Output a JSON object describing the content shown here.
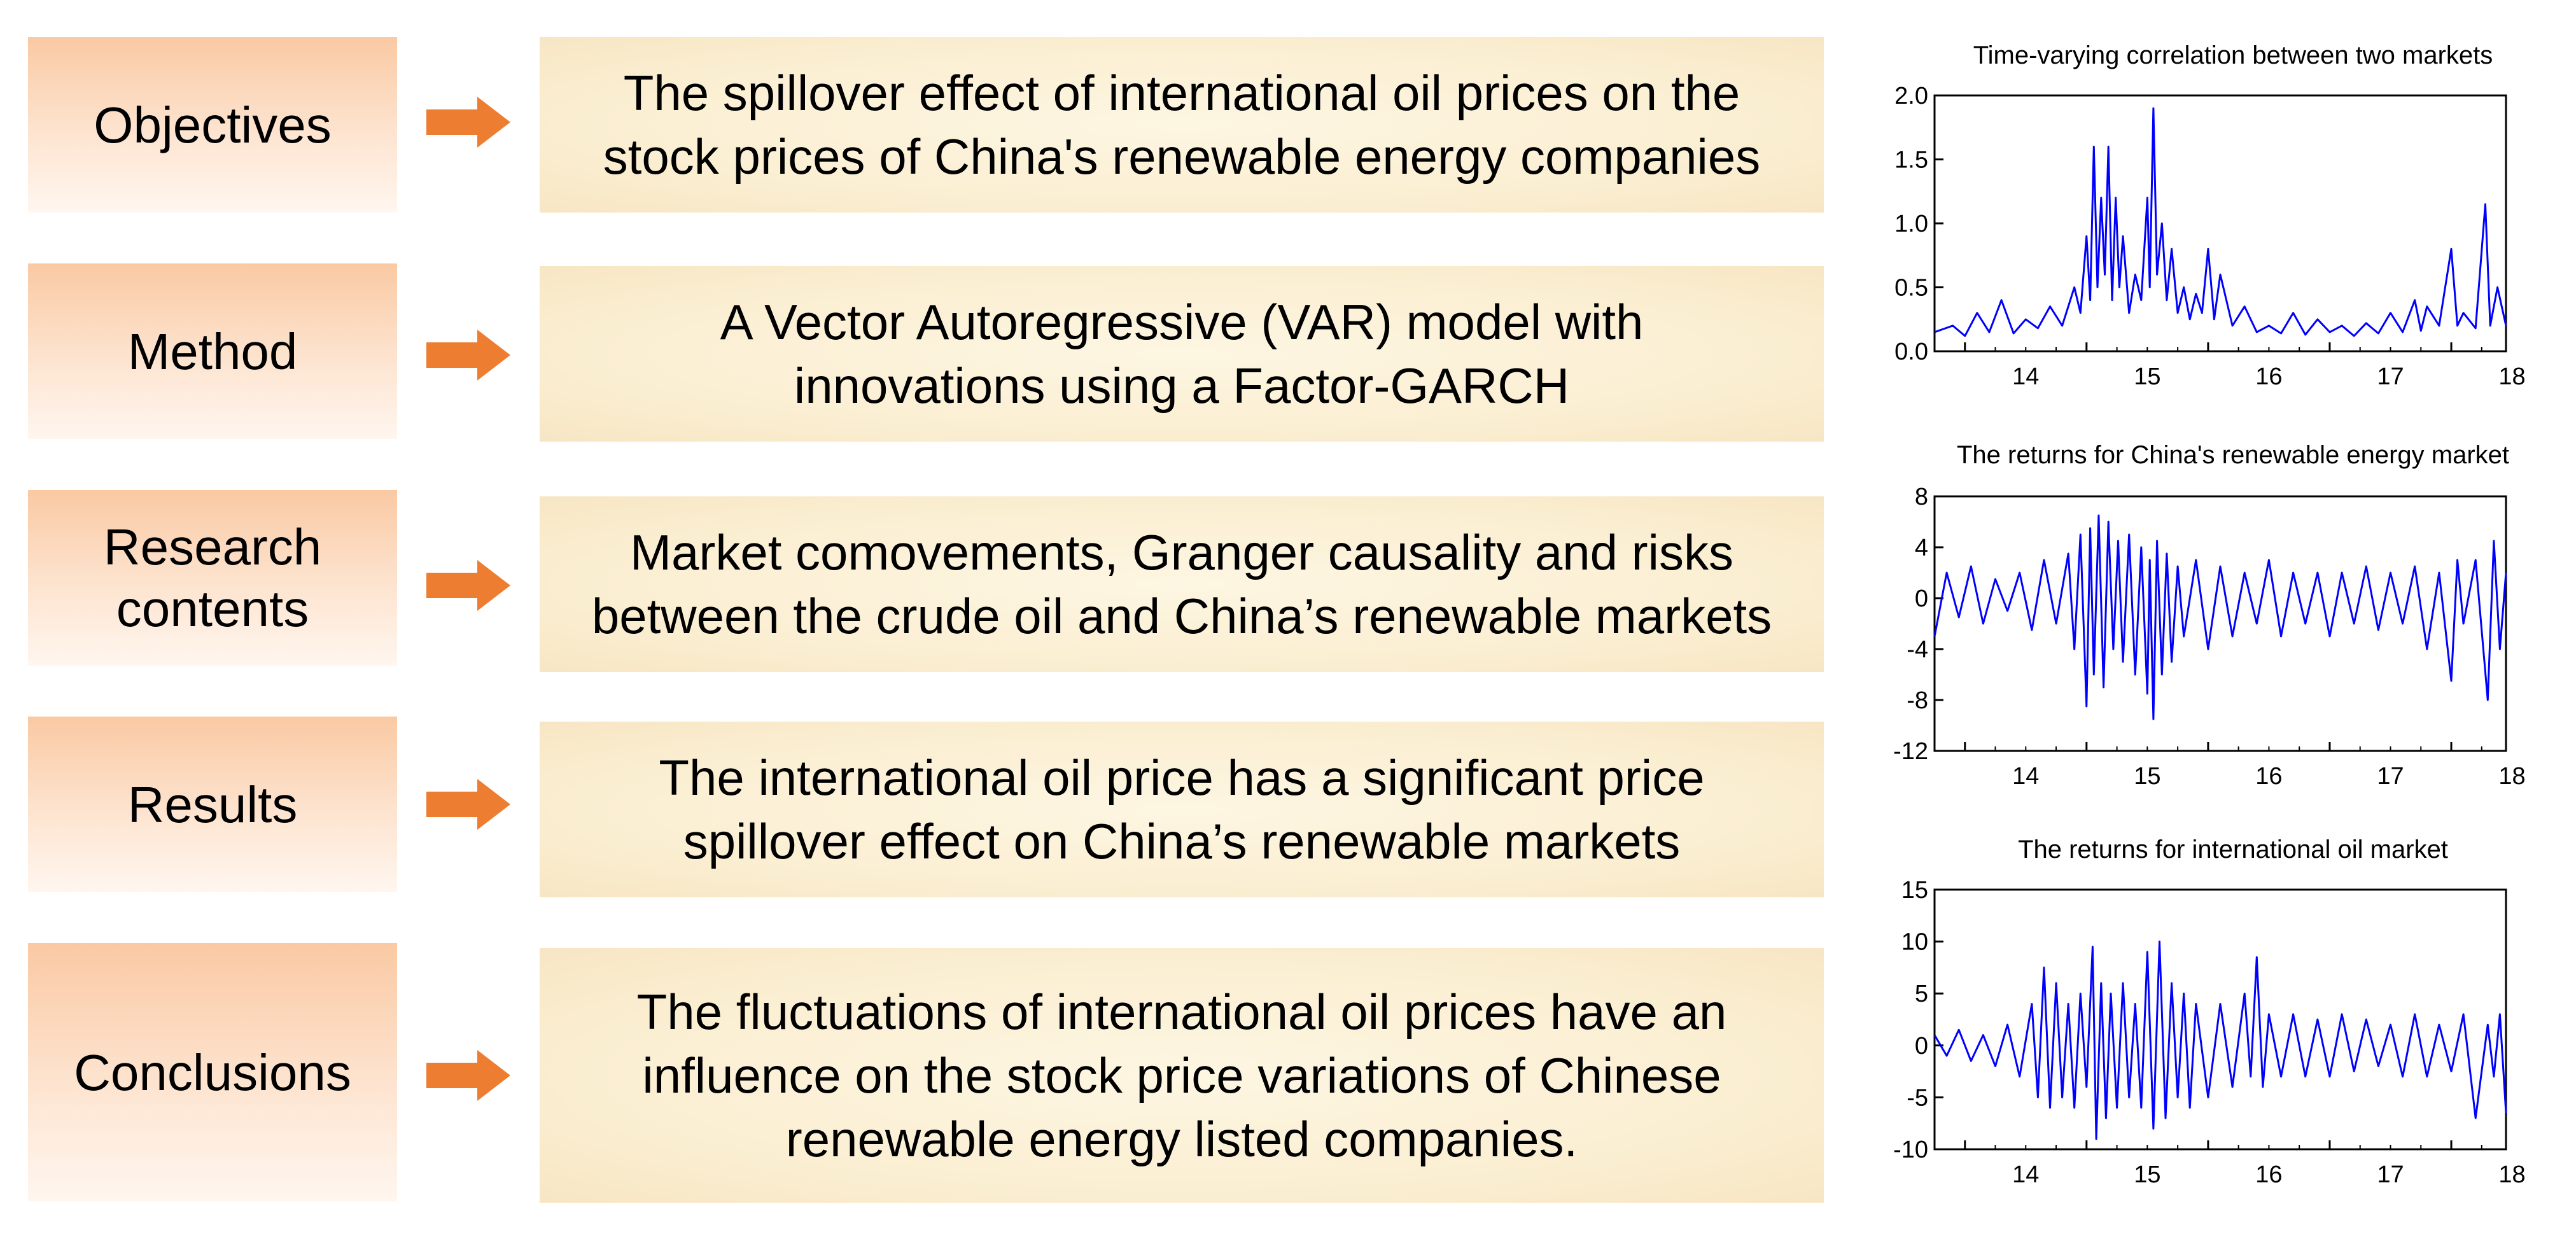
{
  "rows": [
    {
      "label": "Objectives",
      "content": "The spillover effect of international oil prices on the\nstock prices of China's renewable energy companies"
    },
    {
      "label": "Method",
      "content": "A Vector Autoregressive (VAR) model with\ninnovations using a Factor-GARCH"
    },
    {
      "label": "Research\ncontents",
      "content": "Market comovements, Granger causality and risks\nbetween the crude oil and China’s renewable markets"
    },
    {
      "label": "Results",
      "content": "The international oil price has a significant price\nspillover effect on China’s renewable markets"
    },
    {
      "label": "Conclusions",
      "content": "The fluctuations of international oil prices have an\ninfluence on the stock price variations of Chinese\nrenewable energy listed companies."
    }
  ],
  "colors": {
    "arrow": "#ed7d31",
    "series_line": "#0000ff",
    "label_box_top": "#fac9a3",
    "content_box": "#fbefd3"
  },
  "chart_data": [
    {
      "type": "line",
      "title": "Time-varying correlation between two markets",
      "xlabel": "",
      "ylabel": "",
      "x_ticks": [
        "14",
        "15",
        "16",
        "17",
        "18"
      ],
      "y_ticks": [
        "0.0",
        "0.5",
        "1.0",
        "1.5",
        "2.0"
      ],
      "ylim": [
        0,
        2.0
      ],
      "xlim": [
        2013.75,
        2018.45
      ],
      "grid": false,
      "series": [
        {
          "values": [
            [
              2013.75,
              0.15
            ],
            [
              2013.9,
              0.2
            ],
            [
              2014.0,
              0.12
            ],
            [
              2014.1,
              0.3
            ],
            [
              2014.2,
              0.15
            ],
            [
              2014.3,
              0.4
            ],
            [
              2014.4,
              0.14
            ],
            [
              2014.5,
              0.25
            ],
            [
              2014.6,
              0.18
            ],
            [
              2014.7,
              0.35
            ],
            [
              2014.8,
              0.2
            ],
            [
              2014.9,
              0.5
            ],
            [
              2014.95,
              0.3
            ],
            [
              2015.0,
              0.9
            ],
            [
              2015.03,
              0.4
            ],
            [
              2015.06,
              1.6
            ],
            [
              2015.09,
              0.5
            ],
            [
              2015.12,
              1.2
            ],
            [
              2015.15,
              0.6
            ],
            [
              2015.18,
              1.6
            ],
            [
              2015.21,
              0.4
            ],
            [
              2015.24,
              1.2
            ],
            [
              2015.27,
              0.5
            ],
            [
              2015.3,
              0.9
            ],
            [
              2015.35,
              0.3
            ],
            [
              2015.4,
              0.6
            ],
            [
              2015.45,
              0.4
            ],
            [
              2015.5,
              1.2
            ],
            [
              2015.52,
              0.5
            ],
            [
              2015.55,
              1.9
            ],
            [
              2015.58,
              0.6
            ],
            [
              2015.62,
              1.0
            ],
            [
              2015.66,
              0.4
            ],
            [
              2015.7,
              0.8
            ],
            [
              2015.75,
              0.3
            ],
            [
              2015.8,
              0.5
            ],
            [
              2015.85,
              0.25
            ],
            [
              2015.9,
              0.45
            ],
            [
              2015.95,
              0.3
            ],
            [
              2016.0,
              0.8
            ],
            [
              2016.05,
              0.25
            ],
            [
              2016.1,
              0.6
            ],
            [
              2016.2,
              0.2
            ],
            [
              2016.3,
              0.35
            ],
            [
              2016.4,
              0.15
            ],
            [
              2016.5,
              0.2
            ],
            [
              2016.6,
              0.14
            ],
            [
              2016.7,
              0.3
            ],
            [
              2016.8,
              0.13
            ],
            [
              2016.9,
              0.25
            ],
            [
              2017.0,
              0.15
            ],
            [
              2017.1,
              0.2
            ],
            [
              2017.2,
              0.12
            ],
            [
              2017.3,
              0.22
            ],
            [
              2017.4,
              0.14
            ],
            [
              2017.5,
              0.3
            ],
            [
              2017.6,
              0.15
            ],
            [
              2017.7,
              0.4
            ],
            [
              2017.75,
              0.16
            ],
            [
              2017.8,
              0.35
            ],
            [
              2017.9,
              0.2
            ],
            [
              2018.0,
              0.8
            ],
            [
              2018.05,
              0.2
            ],
            [
              2018.1,
              0.3
            ],
            [
              2018.2,
              0.18
            ],
            [
              2018.28,
              1.15
            ],
            [
              2018.32,
              0.2
            ],
            [
              2018.38,
              0.5
            ],
            [
              2018.45,
              0.2
            ]
          ]
        }
      ]
    },
    {
      "type": "line",
      "title": "The returns for China's renewable energy market",
      "xlabel": "",
      "ylabel": "",
      "x_ticks": [
        "14",
        "15",
        "16",
        "17",
        "18"
      ],
      "y_ticks": [
        "8",
        "4",
        "0",
        "-4",
        "-8",
        "-12"
      ],
      "ylim": [
        -12,
        8
      ],
      "xlim": [
        2013.75,
        2018.45
      ],
      "grid": false,
      "series": [
        {
          "values": [
            [
              2013.75,
              -3
            ],
            [
              2013.85,
              2
            ],
            [
              2013.95,
              -1.5
            ],
            [
              2014.05,
              2.5
            ],
            [
              2014.15,
              -2
            ],
            [
              2014.25,
              1.5
            ],
            [
              2014.35,
              -1
            ],
            [
              2014.45,
              2
            ],
            [
              2014.55,
              -2.5
            ],
            [
              2014.65,
              3
            ],
            [
              2014.75,
              -2
            ],
            [
              2014.85,
              3.5
            ],
            [
              2014.9,
              -4
            ],
            [
              2014.95,
              5
            ],
            [
              2015.0,
              -8.5
            ],
            [
              2015.03,
              5.5
            ],
            [
              2015.06,
              -6
            ],
            [
              2015.1,
              6.5
            ],
            [
              2015.14,
              -7
            ],
            [
              2015.18,
              6
            ],
            [
              2015.22,
              -4
            ],
            [
              2015.26,
              4.5
            ],
            [
              2015.3,
              -5
            ],
            [
              2015.35,
              5
            ],
            [
              2015.4,
              -6
            ],
            [
              2015.45,
              4
            ],
            [
              2015.5,
              -7.5
            ],
            [
              2015.52,
              3
            ],
            [
              2015.55,
              -9.5
            ],
            [
              2015.58,
              4.5
            ],
            [
              2015.62,
              -6
            ],
            [
              2015.66,
              3.5
            ],
            [
              2015.7,
              -5
            ],
            [
              2015.75,
              2.5
            ],
            [
              2015.8,
              -3
            ],
            [
              2015.9,
              3
            ],
            [
              2016.0,
              -4
            ],
            [
              2016.1,
              2.5
            ],
            [
              2016.2,
              -3
            ],
            [
              2016.3,
              2
            ],
            [
              2016.4,
              -2
            ],
            [
              2016.5,
              3
            ],
            [
              2016.6,
              -3
            ],
            [
              2016.7,
              2
            ],
            [
              2016.8,
              -2
            ],
            [
              2016.9,
              2
            ],
            [
              2017.0,
              -3
            ],
            [
              2017.1,
              2
            ],
            [
              2017.2,
              -2
            ],
            [
              2017.3,
              2.5
            ],
            [
              2017.4,
              -2.5
            ],
            [
              2017.5,
              2
            ],
            [
              2017.6,
              -2
            ],
            [
              2017.7,
              2.5
            ],
            [
              2017.8,
              -4
            ],
            [
              2017.9,
              2
            ],
            [
              2018.0,
              -6.5
            ],
            [
              2018.05,
              3
            ],
            [
              2018.1,
              -2
            ],
            [
              2018.2,
              3
            ],
            [
              2018.3,
              -8
            ],
            [
              2018.35,
              4.5
            ],
            [
              2018.4,
              -4
            ],
            [
              2018.45,
              2
            ]
          ]
        }
      ]
    },
    {
      "type": "line",
      "title": "The returns for international oil market",
      "xlabel": "",
      "ylabel": "",
      "x_ticks": [
        "14",
        "15",
        "16",
        "17",
        "18"
      ],
      "y_ticks": [
        "15",
        "10",
        "5",
        "0",
        "-5",
        "-10"
      ],
      "ylim": [
        -10,
        15
      ],
      "xlim": [
        2013.75,
        2018.45
      ],
      "grid": false,
      "series": [
        {
          "values": [
            [
              2013.75,
              1
            ],
            [
              2013.85,
              -1
            ],
            [
              2013.95,
              1.5
            ],
            [
              2014.05,
              -1.5
            ],
            [
              2014.15,
              1
            ],
            [
              2014.25,
              -2
            ],
            [
              2014.35,
              2
            ],
            [
              2014.45,
              -3
            ],
            [
              2014.55,
              4
            ],
            [
              2014.6,
              -5
            ],
            [
              2014.65,
              7.5
            ],
            [
              2014.7,
              -6
            ],
            [
              2014.75,
              6
            ],
            [
              2014.8,
              -5
            ],
            [
              2014.85,
              4
            ],
            [
              2014.9,
              -6
            ],
            [
              2014.95,
              5
            ],
            [
              2015.0,
              -4
            ],
            [
              2015.05,
              9.5
            ],
            [
              2015.08,
              -9
            ],
            [
              2015.12,
              6
            ],
            [
              2015.16,
              -7
            ],
            [
              2015.2,
              5
            ],
            [
              2015.25,
              -6
            ],
            [
              2015.3,
              6
            ],
            [
              2015.35,
              -5
            ],
            [
              2015.4,
              4
            ],
            [
              2015.45,
              -6
            ],
            [
              2015.5,
              9
            ],
            [
              2015.55,
              -8
            ],
            [
              2015.6,
              10
            ],
            [
              2015.65,
              -7
            ],
            [
              2015.7,
              6
            ],
            [
              2015.75,
              -5
            ],
            [
              2015.8,
              5
            ],
            [
              2015.85,
              -6
            ],
            [
              2015.9,
              4
            ],
            [
              2016.0,
              -5
            ],
            [
              2016.1,
              4
            ],
            [
              2016.2,
              -4
            ],
            [
              2016.3,
              5
            ],
            [
              2016.35,
              -3
            ],
            [
              2016.4,
              8.5
            ],
            [
              2016.45,
              -4
            ],
            [
              2016.5,
              3
            ],
            [
              2016.6,
              -3
            ],
            [
              2016.7,
              3
            ],
            [
              2016.8,
              -3
            ],
            [
              2016.9,
              2.5
            ],
            [
              2017.0,
              -3
            ],
            [
              2017.1,
              3
            ],
            [
              2017.2,
              -2.5
            ],
            [
              2017.3,
              2.5
            ],
            [
              2017.4,
              -2
            ],
            [
              2017.5,
              2
            ],
            [
              2017.6,
              -3
            ],
            [
              2017.7,
              3
            ],
            [
              2017.8,
              -3
            ],
            [
              2017.9,
              2
            ],
            [
              2018.0,
              -2.5
            ],
            [
              2018.1,
              3
            ],
            [
              2018.2,
              -7
            ],
            [
              2018.3,
              2
            ],
            [
              2018.35,
              -3
            ],
            [
              2018.4,
              3
            ],
            [
              2018.45,
              -6.5
            ]
          ]
        }
      ]
    }
  ]
}
